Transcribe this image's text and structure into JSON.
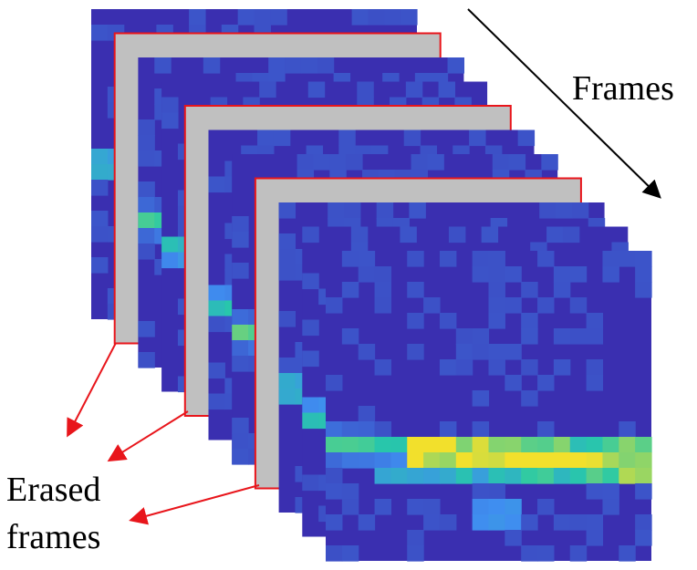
{
  "labels": {
    "frames": "Frames",
    "erased_line1": "Erased",
    "erased_line2": "frames"
  },
  "frames": [
    {
      "kind": "heatmap"
    },
    {
      "kind": "erased"
    },
    {
      "kind": "heatmap"
    },
    {
      "kind": "heatmap"
    },
    {
      "kind": "erased"
    },
    {
      "kind": "heatmap"
    },
    {
      "kind": "heatmap"
    },
    {
      "kind": "erased"
    },
    {
      "kind": "heatmap"
    },
    {
      "kind": "heatmap"
    },
    {
      "kind": "heatmap"
    }
  ],
  "colors": {
    "heatmap_base": "#3a2fb0",
    "heatmap_mid": "#3f8ef0",
    "heatmap_hot": "#27c9a8",
    "heatmap_peak": "#f2e02c",
    "erased_fill": "#c0c0c0",
    "erased_border": "#e8151b",
    "arrow": "#000000",
    "pointer": "#e8151b"
  }
}
